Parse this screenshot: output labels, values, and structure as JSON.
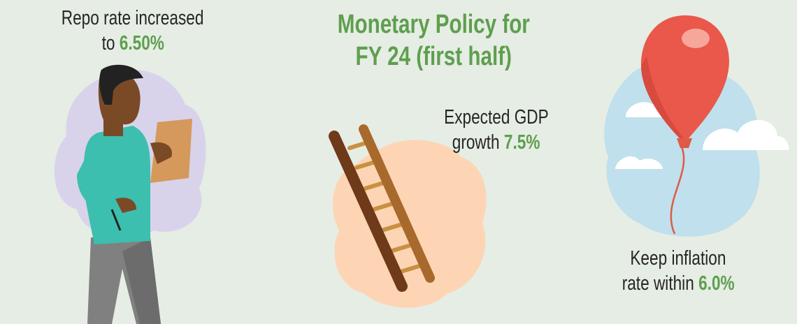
{
  "title": {
    "line1": "Monetary Policy for",
    "line2": "FY 24 (first half)"
  },
  "repo": {
    "line1": "Repo rate increased",
    "prefix": "to ",
    "value": "6.50%"
  },
  "gdp": {
    "line1": "Expected GDP",
    "prefix": "growth ",
    "value": "7.5%"
  },
  "inflation": {
    "line1": "Keep inflation",
    "prefix": "rate within ",
    "value": "6.0%"
  },
  "colors": {
    "background": "#e6ede4",
    "accent": "#5e9f4e",
    "text": "#262626"
  },
  "illustrations": [
    "person-with-clipboard",
    "ladder",
    "red-balloon-with-clouds"
  ]
}
